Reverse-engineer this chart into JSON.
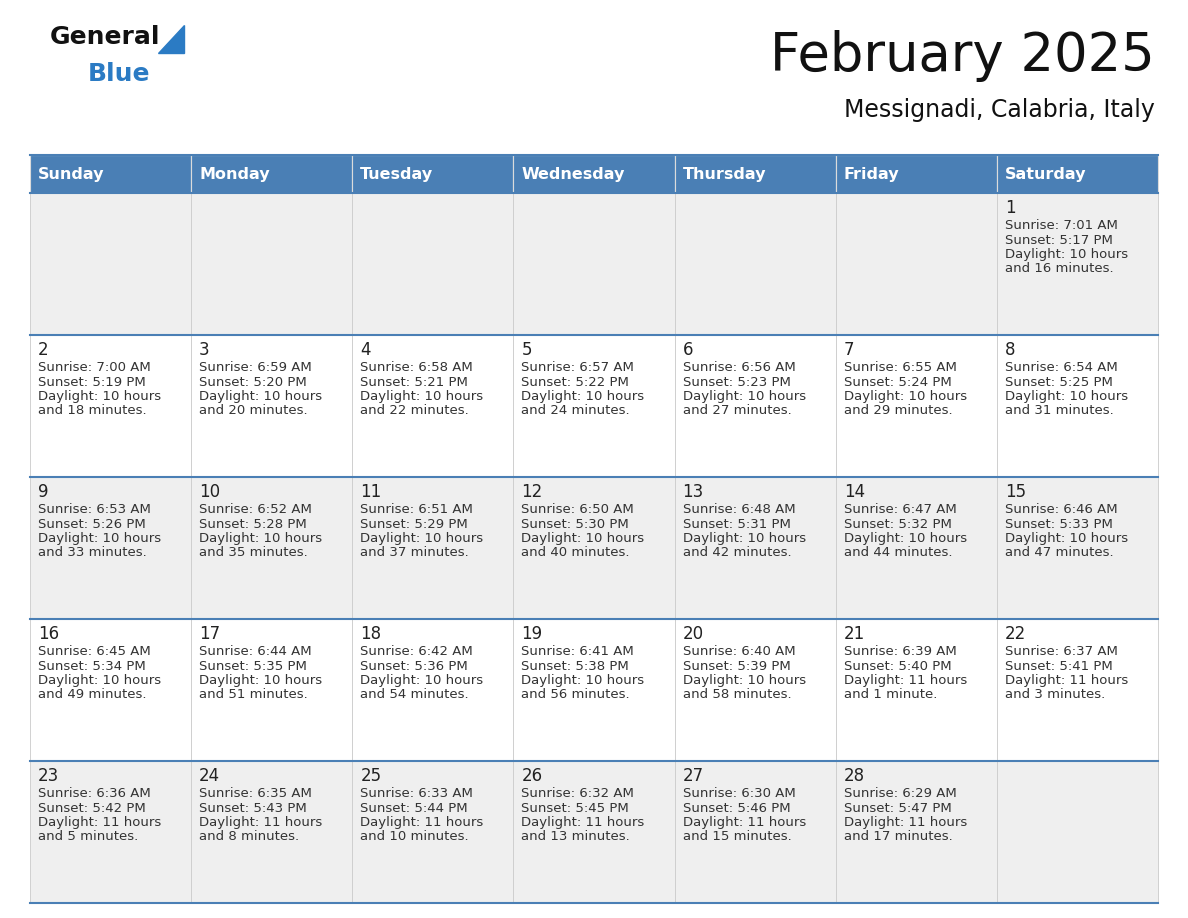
{
  "title": "February 2025",
  "subtitle": "Messignadi, Calabria, Italy",
  "days_of_week": [
    "Sunday",
    "Monday",
    "Tuesday",
    "Wednesday",
    "Thursday",
    "Friday",
    "Saturday"
  ],
  "header_bg": "#4a7fb5",
  "header_text": "#ffffff",
  "row_bg_light": "#efefef",
  "row_bg_white": "#ffffff",
  "cell_text_color": "#333333",
  "border_color": "#4a7fb5",
  "border_color_light": "#cccccc",
  "general_black": "#222222",
  "general_blue": "#2b7bc4",
  "calendar_data": [
    [
      null,
      null,
      null,
      null,
      null,
      null,
      {
        "day": "1",
        "sunrise": "7:01 AM",
        "sunset": "5:17 PM",
        "daylight1": "Daylight: 10 hours",
        "daylight2": "and 16 minutes."
      }
    ],
    [
      {
        "day": "2",
        "sunrise": "7:00 AM",
        "sunset": "5:19 PM",
        "daylight1": "Daylight: 10 hours",
        "daylight2": "and 18 minutes."
      },
      {
        "day": "3",
        "sunrise": "6:59 AM",
        "sunset": "5:20 PM",
        "daylight1": "Daylight: 10 hours",
        "daylight2": "and 20 minutes."
      },
      {
        "day": "4",
        "sunrise": "6:58 AM",
        "sunset": "5:21 PM",
        "daylight1": "Daylight: 10 hours",
        "daylight2": "and 22 minutes."
      },
      {
        "day": "5",
        "sunrise": "6:57 AM",
        "sunset": "5:22 PM",
        "daylight1": "Daylight: 10 hours",
        "daylight2": "and 24 minutes."
      },
      {
        "day": "6",
        "sunrise": "6:56 AM",
        "sunset": "5:23 PM",
        "daylight1": "Daylight: 10 hours",
        "daylight2": "and 27 minutes."
      },
      {
        "day": "7",
        "sunrise": "6:55 AM",
        "sunset": "5:24 PM",
        "daylight1": "Daylight: 10 hours",
        "daylight2": "and 29 minutes."
      },
      {
        "day": "8",
        "sunrise": "6:54 AM",
        "sunset": "5:25 PM",
        "daylight1": "Daylight: 10 hours",
        "daylight2": "and 31 minutes."
      }
    ],
    [
      {
        "day": "9",
        "sunrise": "6:53 AM",
        "sunset": "5:26 PM",
        "daylight1": "Daylight: 10 hours",
        "daylight2": "and 33 minutes."
      },
      {
        "day": "10",
        "sunrise": "6:52 AM",
        "sunset": "5:28 PM",
        "daylight1": "Daylight: 10 hours",
        "daylight2": "and 35 minutes."
      },
      {
        "day": "11",
        "sunrise": "6:51 AM",
        "sunset": "5:29 PM",
        "daylight1": "Daylight: 10 hours",
        "daylight2": "and 37 minutes."
      },
      {
        "day": "12",
        "sunrise": "6:50 AM",
        "sunset": "5:30 PM",
        "daylight1": "Daylight: 10 hours",
        "daylight2": "and 40 minutes."
      },
      {
        "day": "13",
        "sunrise": "6:48 AM",
        "sunset": "5:31 PM",
        "daylight1": "Daylight: 10 hours",
        "daylight2": "and 42 minutes."
      },
      {
        "day": "14",
        "sunrise": "6:47 AM",
        "sunset": "5:32 PM",
        "daylight1": "Daylight: 10 hours",
        "daylight2": "and 44 minutes."
      },
      {
        "day": "15",
        "sunrise": "6:46 AM",
        "sunset": "5:33 PM",
        "daylight1": "Daylight: 10 hours",
        "daylight2": "and 47 minutes."
      }
    ],
    [
      {
        "day": "16",
        "sunrise": "6:45 AM",
        "sunset": "5:34 PM",
        "daylight1": "Daylight: 10 hours",
        "daylight2": "and 49 minutes."
      },
      {
        "day": "17",
        "sunrise": "6:44 AM",
        "sunset": "5:35 PM",
        "daylight1": "Daylight: 10 hours",
        "daylight2": "and 51 minutes."
      },
      {
        "day": "18",
        "sunrise": "6:42 AM",
        "sunset": "5:36 PM",
        "daylight1": "Daylight: 10 hours",
        "daylight2": "and 54 minutes."
      },
      {
        "day": "19",
        "sunrise": "6:41 AM",
        "sunset": "5:38 PM",
        "daylight1": "Daylight: 10 hours",
        "daylight2": "and 56 minutes."
      },
      {
        "day": "20",
        "sunrise": "6:40 AM",
        "sunset": "5:39 PM",
        "daylight1": "Daylight: 10 hours",
        "daylight2": "and 58 minutes."
      },
      {
        "day": "21",
        "sunrise": "6:39 AM",
        "sunset": "5:40 PM",
        "daylight1": "Daylight: 11 hours",
        "daylight2": "and 1 minute."
      },
      {
        "day": "22",
        "sunrise": "6:37 AM",
        "sunset": "5:41 PM",
        "daylight1": "Daylight: 11 hours",
        "daylight2": "and 3 minutes."
      }
    ],
    [
      {
        "day": "23",
        "sunrise": "6:36 AM",
        "sunset": "5:42 PM",
        "daylight1": "Daylight: 11 hours",
        "daylight2": "and 5 minutes."
      },
      {
        "day": "24",
        "sunrise": "6:35 AM",
        "sunset": "5:43 PM",
        "daylight1": "Daylight: 11 hours",
        "daylight2": "and 8 minutes."
      },
      {
        "day": "25",
        "sunrise": "6:33 AM",
        "sunset": "5:44 PM",
        "daylight1": "Daylight: 11 hours",
        "daylight2": "and 10 minutes."
      },
      {
        "day": "26",
        "sunrise": "6:32 AM",
        "sunset": "5:45 PM",
        "daylight1": "Daylight: 11 hours",
        "daylight2": "and 13 minutes."
      },
      {
        "day": "27",
        "sunrise": "6:30 AM",
        "sunset": "5:46 PM",
        "daylight1": "Daylight: 11 hours",
        "daylight2": "and 15 minutes."
      },
      {
        "day": "28",
        "sunrise": "6:29 AM",
        "sunset": "5:47 PM",
        "daylight1": "Daylight: 11 hours",
        "daylight2": "and 17 minutes."
      },
      null
    ]
  ],
  "num_rows": 5,
  "num_cols": 7
}
